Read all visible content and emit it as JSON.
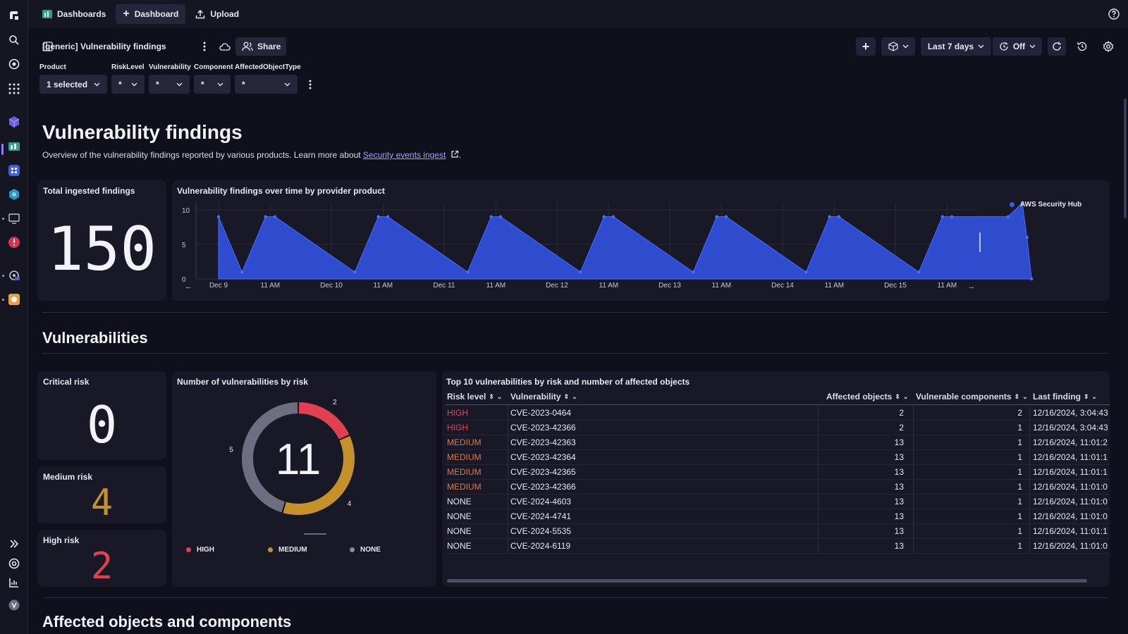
{
  "topbar": {
    "dashboards_label": "Dashboards",
    "new_dashboard_label": "Dashboard",
    "upload_label": "Upload"
  },
  "toolbar": {
    "dashboard_title": "[generic] Vulnerability findings",
    "share_label": "Share",
    "timeframe": "Last 7 days",
    "refresh_label": "Off"
  },
  "filters": [
    {
      "label": "Product",
      "value": "1 selected"
    },
    {
      "label": "RiskLevel",
      "value": "*"
    },
    {
      "label": "Vulnerability",
      "value": "*"
    },
    {
      "label": "Component",
      "value": "*"
    },
    {
      "label": "AffectedObjectType",
      "value": "*"
    }
  ],
  "page": {
    "title": "Vulnerability findings",
    "subtitle_prefix": "Overview of the vulnerability findings reported by various products. Learn more about ",
    "subtitle_link": "Security events ingest",
    "subtitle_suffix": "."
  },
  "total_tile": {
    "title": "Total ingested findings",
    "value": "150"
  },
  "timeseries_tile": {
    "title": "Vulnerability findings over time by provider product"
  },
  "section_vulns": {
    "title": "Vulnerabilities"
  },
  "section_affected": {
    "title": "Affected objects and components"
  },
  "risk_tiles": {
    "critical": {
      "title": "Critical risk",
      "value": "0"
    },
    "medium": {
      "title": "Medium risk",
      "value": "4"
    },
    "high": {
      "title": "High risk",
      "value": "2"
    }
  },
  "donut_tile": {
    "title": "Number of vulnerabilities by risk",
    "total": "11"
  },
  "table_tile": {
    "title": "Top 10 vulnerabilities by risk and number of affected objects",
    "columns": [
      "Risk level",
      "Vulnerability",
      "Affected objects",
      "Vulnerable components",
      "Last finding"
    ],
    "rows": [
      [
        "HIGH",
        "CVE-2023-0464",
        "2",
        "2",
        "12/16/2024, 3:04:43"
      ],
      [
        "HIGH",
        "CVE-2023-42366",
        "2",
        "1",
        "12/16/2024, 3:04:43"
      ],
      [
        "MEDIUM",
        "CVE-2023-42363",
        "13",
        "1",
        "12/16/2024, 11:01:2"
      ],
      [
        "MEDIUM",
        "CVE-2023-42364",
        "13",
        "1",
        "12/16/2024, 11:01:1"
      ],
      [
        "MEDIUM",
        "CVE-2023-42365",
        "13",
        "1",
        "12/16/2024, 11:01:1"
      ],
      [
        "MEDIUM",
        "CVE-2023-42366",
        "13",
        "1",
        "12/16/2024, 11:01:0"
      ],
      [
        "NONE",
        "CVE-2024-4603",
        "13",
        "1",
        "12/16/2024, 11:01:0"
      ],
      [
        "NONE",
        "CVE-2024-4741",
        "13",
        "1",
        "12/16/2024, 11:01:0"
      ],
      [
        "NONE",
        "CVE-2024-5535",
        "13",
        "1",
        "12/16/2024, 11:01:1"
      ],
      [
        "NONE",
        "CVE-2024-6119",
        "13",
        "1",
        "12/16/2024, 11:01:0"
      ]
    ]
  },
  "colors": {
    "high": "#e0404f",
    "medium": "#c4912a",
    "none": "#6e6e80",
    "series": "#2f4fd6",
    "accent": "#8a7dff",
    "risk_high_text": "#e04a57",
    "risk_medium_text": "#e07a3a"
  },
  "chart_data": [
    {
      "type": "area",
      "series": [
        {
          "name": "AWS Security Hub",
          "x": [
            "Dec 9 00:00",
            "Dec 9 05:00",
            "Dec 9 10:00",
            "Dec 9 12:00",
            "Dec 10 05:00",
            "Dec 10 10:00",
            "Dec 10 12:00",
            "Dec 11 05:00",
            "Dec 11 10:00",
            "Dec 11 12:00",
            "Dec 12 05:00",
            "Dec 12 10:00",
            "Dec 12 12:00",
            "Dec 13 05:00",
            "Dec 13 10:00",
            "Dec 13 12:00",
            "Dec 14 05:00",
            "Dec 14 10:00",
            "Dec 14 12:00",
            "Dec 15 05:00",
            "Dec 15 10:00",
            "Dec 15 12:00",
            "Dec 16 00:00",
            "Dec 16 03:00",
            "Dec 16 04:00",
            "Dec 16 05:00"
          ],
          "values": [
            9,
            1,
            9,
            9,
            1,
            9,
            9,
            1,
            9,
            9,
            1,
            9,
            9,
            1,
            9,
            9,
            1,
            9,
            9,
            1,
            9,
            9,
            9,
            11,
            6,
            0
          ]
        }
      ],
      "x_ticks": [
        "Dec 9",
        "11 AM",
        "Dec 10",
        "11 AM",
        "Dec 11",
        "11 AM",
        "Dec 12",
        "11 AM",
        "Dec 13",
        "11 AM",
        "Dec 14",
        "11 AM",
        "Dec 15",
        "11 AM"
      ],
      "y_ticks": [
        "0",
        "5",
        "10"
      ],
      "ylim": [
        0,
        11
      ],
      "legend": "right"
    },
    {
      "type": "pie",
      "categories": [
        "HIGH",
        "MEDIUM",
        "NONE"
      ],
      "values": [
        2,
        4,
        5
      ],
      "legend": "bottom"
    }
  ]
}
